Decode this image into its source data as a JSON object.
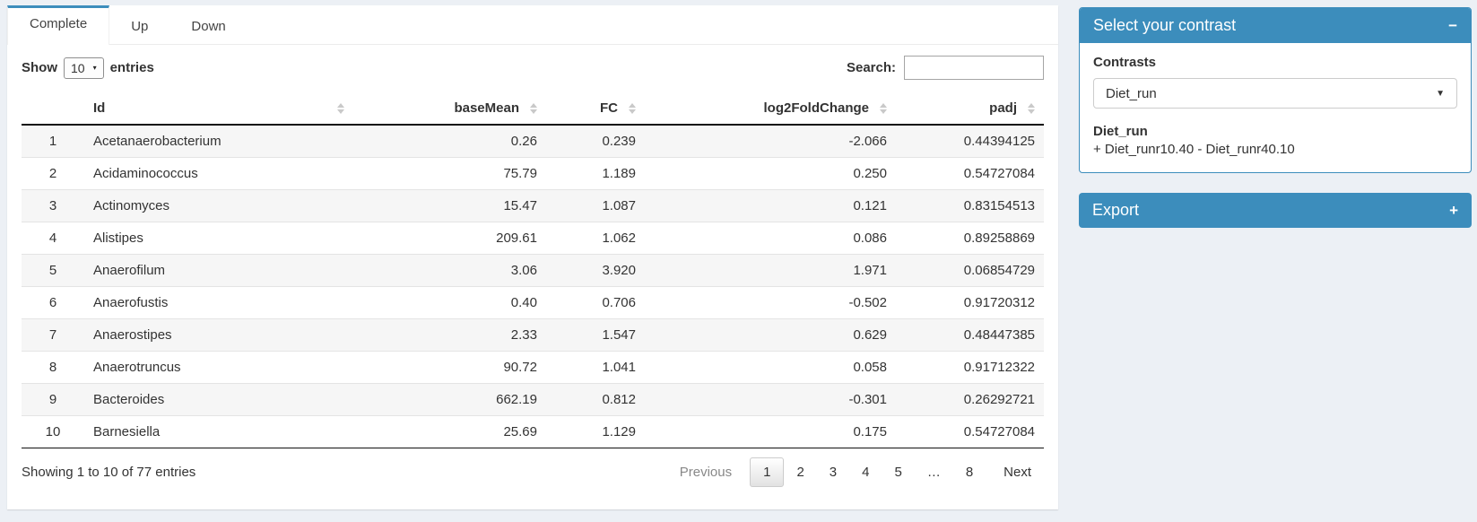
{
  "colors": {
    "accent": "#3c8dbc",
    "page_bg": "#ecf0f5",
    "stripe": "#f6f6f6"
  },
  "tabs": {
    "items": [
      {
        "label": "Complete",
        "active": true
      },
      {
        "label": "Up",
        "active": false
      },
      {
        "label": "Down",
        "active": false
      }
    ]
  },
  "table_controls": {
    "show_label": "Show",
    "page_length": "10",
    "entries_label": "entries",
    "search_label": "Search:",
    "search_value": ""
  },
  "table": {
    "columns": [
      "Id",
      "baseMean",
      "FC",
      "log2FoldChange",
      "padj"
    ],
    "rows": [
      {
        "num": "1",
        "id": "Acetanaerobacterium",
        "baseMean": "0.26",
        "fc": "0.239",
        "log2fc": "-2.066",
        "padj": "0.44394125"
      },
      {
        "num": "2",
        "id": "Acidaminococcus",
        "baseMean": "75.79",
        "fc": "1.189",
        "log2fc": "0.250",
        "padj": "0.54727084"
      },
      {
        "num": "3",
        "id": "Actinomyces",
        "baseMean": "15.47",
        "fc": "1.087",
        "log2fc": "0.121",
        "padj": "0.83154513"
      },
      {
        "num": "4",
        "id": "Alistipes",
        "baseMean": "209.61",
        "fc": "1.062",
        "log2fc": "0.086",
        "padj": "0.89258869"
      },
      {
        "num": "5",
        "id": "Anaerofilum",
        "baseMean": "3.06",
        "fc": "3.920",
        "log2fc": "1.971",
        "padj": "0.06854729"
      },
      {
        "num": "6",
        "id": "Anaerofustis",
        "baseMean": "0.40",
        "fc": "0.706",
        "log2fc": "-0.502",
        "padj": "0.91720312"
      },
      {
        "num": "7",
        "id": "Anaerostipes",
        "baseMean": "2.33",
        "fc": "1.547",
        "log2fc": "0.629",
        "padj": "0.48447385"
      },
      {
        "num": "8",
        "id": "Anaerotruncus",
        "baseMean": "90.72",
        "fc": "1.041",
        "log2fc": "0.058",
        "padj": "0.91712322"
      },
      {
        "num": "9",
        "id": "Bacteroides",
        "baseMean": "662.19",
        "fc": "0.812",
        "log2fc": "-0.301",
        "padj": "0.26292721"
      },
      {
        "num": "10",
        "id": "Barnesiella",
        "baseMean": "25.69",
        "fc": "1.129",
        "log2fc": "0.175",
        "padj": "0.54727084"
      }
    ]
  },
  "footer": {
    "info": "Showing 1 to 10 of 77 entries",
    "previous_label": "Previous",
    "pages": [
      "1",
      "2",
      "3",
      "4",
      "5",
      "…",
      "8"
    ],
    "active_page": "1",
    "next_label": "Next"
  },
  "contrast_panel": {
    "title": "Select your contrast",
    "contrasts_label": "Contrasts",
    "selected": "Diet_run",
    "description_title": "Diet_run",
    "description": "+ Diet_runr10.40 - Diet_runr40.10"
  },
  "export_panel": {
    "title": "Export"
  },
  "icons": {
    "sort": "up-down-triangles",
    "minus": "−",
    "plus": "+",
    "caret_down": "▼",
    "caret_down_small": "▾"
  }
}
